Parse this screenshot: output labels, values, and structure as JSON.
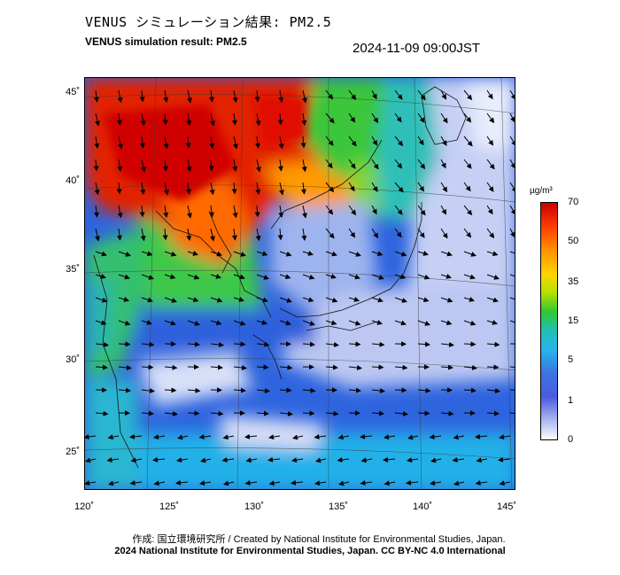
{
  "header": {
    "title_jp": "VENUS シミュレーション結果: PM2.5",
    "title_en": "VENUS simulation result: PM2.5",
    "timestamp": "2024-11-09 09:00JST"
  },
  "map": {
    "lat_ticks": [
      "45˚",
      "40˚",
      "35˚",
      "30˚",
      "25˚"
    ],
    "lon_ticks": [
      "120˚",
      "125˚",
      "130˚",
      "135˚",
      "140˚",
      "145˚"
    ]
  },
  "colorbar": {
    "unit": "µg/m³",
    "labels": [
      "70",
      "50",
      "35",
      "15",
      "5",
      "1",
      "0"
    ],
    "colors": [
      "#d40000",
      "#ff4400",
      "#ffa500",
      "#ffd000",
      "#c8e600",
      "#33cc33",
      "#20c0b0",
      "#2ab8e8",
      "#3a7fe0",
      "#4060e0",
      "#8090e8",
      "#c8d0f5",
      "#ffffff"
    ]
  },
  "footer": {
    "credit_line": "作成: 国立環境研究所 / Created by National Institute for Environmental Studies, Japan.",
    "license_line": "2024 National Institute for Environmental Studies, Japan. CC BY-NC 4.0 International"
  }
}
